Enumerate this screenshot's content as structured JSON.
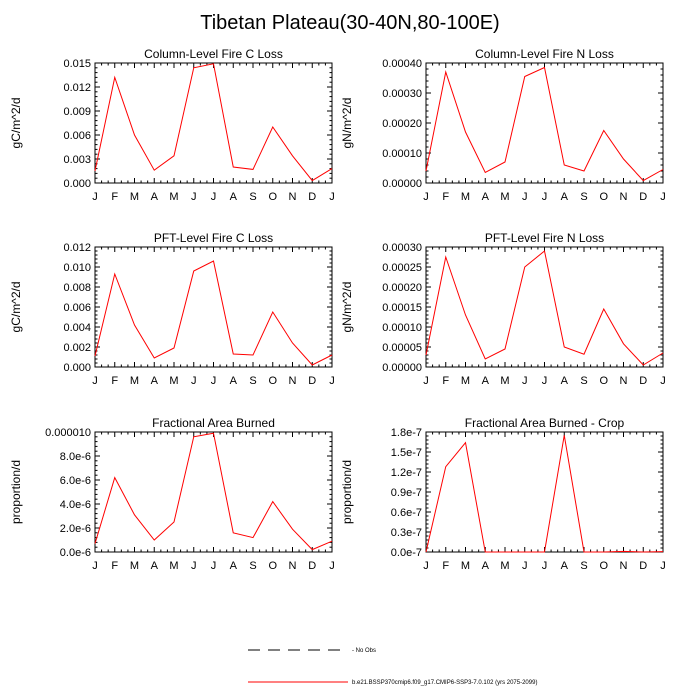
{
  "title": "Tibetan Plateau(30-40N,80-100E)",
  "colors": {
    "model": "#ff0000",
    "obs": "#000000",
    "axis": "#000000"
  },
  "legend": [
    {
      "label": "No Obs",
      "style": "dashed",
      "color": "#000000"
    },
    {
      "label": "b.e21.BSSP370cmip6.f09_g17.CMIP6-SSP3-7.0.102 (yrs 2075-2099)",
      "style": "solid",
      "color": "#ff0000"
    }
  ],
  "chart_data": [
    {
      "type": "line",
      "title": "Column-Level Fire C Loss",
      "ylabel": "gC/m^2/d",
      "categories": [
        "J",
        "F",
        "M",
        "A",
        "M",
        "J",
        "J",
        "A",
        "S",
        "O",
        "N",
        "D",
        "J"
      ],
      "ylim": [
        0,
        0.015
      ],
      "yticks": [
        0,
        0.003,
        0.006,
        0.009,
        0.012,
        0.015
      ],
      "ytick_labels": [
        "0.000",
        "0.003",
        "0.006",
        "0.009",
        "0.012",
        "0.015"
      ],
      "series": [
        {
          "values": [
            0.0015,
            0.0132,
            0.006,
            0.0016,
            0.0034,
            0.0144,
            0.0149,
            0.002,
            0.0017,
            0.007,
            0.0034,
            0.0003,
            0.0018
          ]
        }
      ]
    },
    {
      "type": "line",
      "title": "Column-Level Fire N Loss",
      "ylabel": "gN/m^2/d",
      "categories": [
        "J",
        "F",
        "M",
        "A",
        "M",
        "J",
        "J",
        "A",
        "S",
        "O",
        "N",
        "D",
        "J"
      ],
      "ylim": [
        0,
        0.0004
      ],
      "yticks": [
        0,
        0.0001,
        0.0002,
        0.0003,
        0.0004
      ],
      "ytick_labels": [
        "0.00000",
        "0.00010",
        "0.00020",
        "0.00030",
        "0.00040"
      ],
      "series": [
        {
          "values": [
            4e-05,
            0.00037,
            0.00017,
            3.5e-05,
            7e-05,
            0.000355,
            0.000385,
            6e-05,
            4e-05,
            0.000175,
            8e-05,
            8e-06,
            4.5e-05
          ]
        }
      ]
    },
    {
      "type": "line",
      "title": "PFT-Level Fire C Loss",
      "ylabel": "gC/m^2/d",
      "categories": [
        "J",
        "F",
        "M",
        "A",
        "M",
        "J",
        "J",
        "A",
        "S",
        "O",
        "N",
        "D",
        "J"
      ],
      "ylim": [
        0,
        0.012
      ],
      "yticks": [
        0,
        0.002,
        0.004,
        0.006,
        0.008,
        0.01,
        0.012
      ],
      "ytick_labels": [
        "0.000",
        "0.002",
        "0.004",
        "0.006",
        "0.008",
        "0.010",
        "0.012"
      ],
      "series": [
        {
          "values": [
            0.0011,
            0.0093,
            0.0042,
            0.0009,
            0.0019,
            0.0096,
            0.0106,
            0.0013,
            0.0012,
            0.0055,
            0.0024,
            0.0002,
            0.0012
          ]
        }
      ]
    },
    {
      "type": "line",
      "title": "PFT-Level Fire N Loss",
      "ylabel": "gN/m^2/d",
      "categories": [
        "J",
        "F",
        "M",
        "A",
        "M",
        "J",
        "J",
        "A",
        "S",
        "O",
        "N",
        "D",
        "J"
      ],
      "ylim": [
        0,
        0.0003
      ],
      "yticks": [
        0,
        5e-05,
        0.0001,
        0.00015,
        0.0002,
        0.00025,
        0.0003
      ],
      "ytick_labels": [
        "0.00000",
        "0.00005",
        "0.00010",
        "0.00015",
        "0.00020",
        "0.00025",
        "0.00030"
      ],
      "series": [
        {
          "values": [
            3e-05,
            0.000275,
            0.00013,
            2e-05,
            4.5e-05,
            0.00025,
            0.00029,
            5e-05,
            3.2e-05,
            0.000145,
            5.8e-05,
            5e-06,
            3.5e-05
          ]
        }
      ]
    },
    {
      "type": "line",
      "title": "Fractional Area Burned",
      "ylabel": "proportion/d",
      "categories": [
        "J",
        "F",
        "M",
        "A",
        "M",
        "J",
        "J",
        "A",
        "S",
        "O",
        "N",
        "D",
        "J"
      ],
      "ylim": [
        0,
        1e-05
      ],
      "yticks": [
        0,
        2e-06,
        4e-06,
        6e-06,
        8e-06,
        1e-05
      ],
      "ytick_labels": [
        "0.0e-6",
        "2.0e-6",
        "4.0e-6",
        "6.0e-6",
        "8.0e-6",
        "0.000010"
      ],
      "series": [
        {
          "values": [
            7e-07,
            6.2e-06,
            3.1e-06,
            1e-06,
            2.5e-06,
            9.6e-06,
            9.9e-06,
            1.6e-06,
            1.2e-06,
            4.2e-06,
            1.9e-06,
            2e-07,
            9e-07
          ]
        }
      ]
    },
    {
      "type": "line",
      "title": "Fractional Area Burned - Crop",
      "ylabel": "proportion/d",
      "categories": [
        "J",
        "F",
        "M",
        "A",
        "M",
        "J",
        "J",
        "A",
        "S",
        "O",
        "N",
        "D",
        "J"
      ],
      "ylim": [
        0,
        1.8e-07
      ],
      "yticks": [
        0,
        3e-08,
        6e-08,
        9e-08,
        1.2e-07,
        1.5e-07,
        1.8e-07
      ],
      "ytick_labels": [
        "0.0e-7",
        "0.3e-7",
        "0.6e-7",
        "0.9e-7",
        "1.2e-7",
        "1.5e-7",
        "1.8e-7"
      ],
      "series": [
        {
          "values": [
            0,
            1.28e-07,
            1.64e-07,
            0,
            0,
            0,
            0,
            1.75e-07,
            0,
            0,
            1e-09,
            0,
            5e-10
          ]
        }
      ]
    }
  ]
}
